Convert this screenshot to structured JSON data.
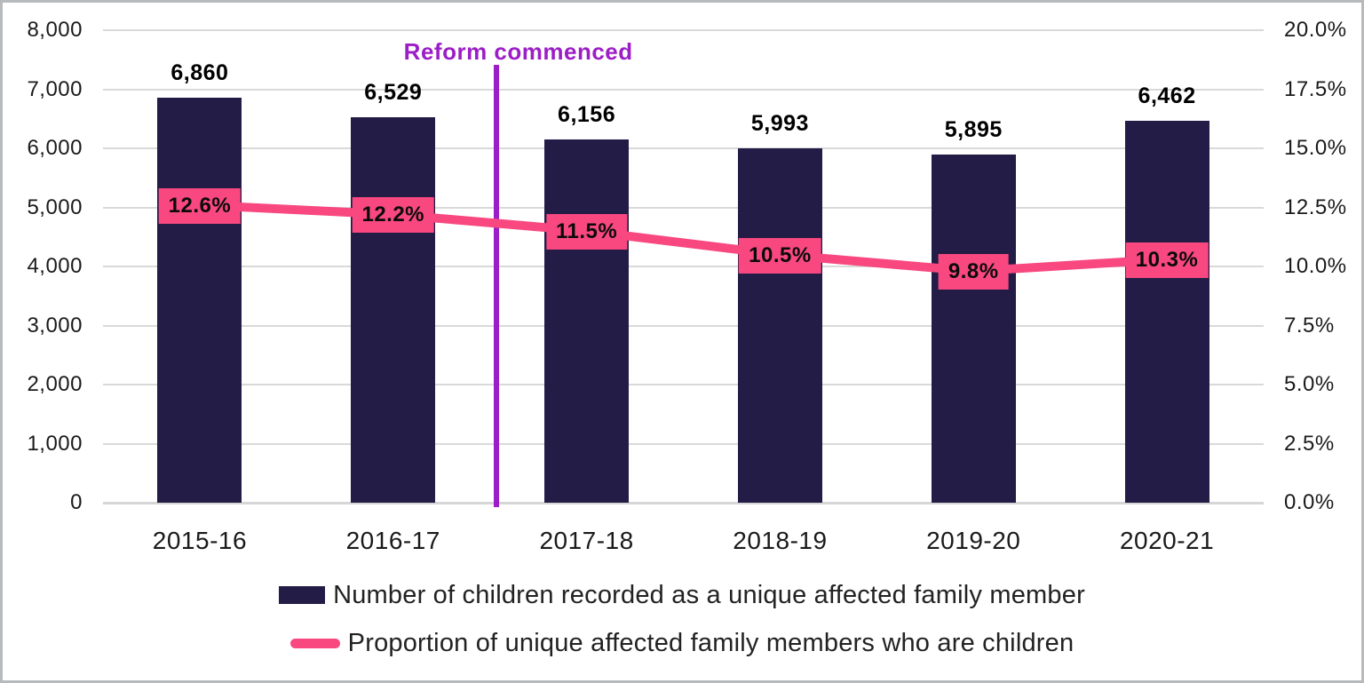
{
  "chart_data": {
    "type": "bar",
    "subtype": "bar-and-line-dual-axis",
    "categories": [
      "2015-16",
      "2016-17",
      "2017-18",
      "2018-19",
      "2019-20",
      "2020-21"
    ],
    "series": [
      {
        "name": "Number of children recorded as a unique affected family member",
        "type": "bar",
        "axis": "left",
        "color": "#231c46",
        "values": [
          6860,
          6529,
          6156,
          5993,
          5895,
          6462
        ],
        "labels": [
          "6,860",
          "6,529",
          "6,156",
          "5,993",
          "5,895",
          "6,462"
        ]
      },
      {
        "name": "Proportion of unique affected family members who are children",
        "type": "line",
        "axis": "right",
        "color": "#f8487f",
        "values": [
          12.6,
          12.2,
          11.5,
          10.5,
          9.8,
          10.3
        ],
        "labels": [
          "12.6%",
          "12.2%",
          "11.5%",
          "10.5%",
          "9.8%",
          "10.3%"
        ]
      }
    ],
    "left_axis": {
      "min": 0,
      "max": 8000,
      "step": 1000,
      "tick_labels": [
        "0",
        "1,000",
        "2,000",
        "3,000",
        "4,000",
        "5,000",
        "6,000",
        "7,000",
        "8,000"
      ]
    },
    "right_axis": {
      "min": 0,
      "max": 20,
      "step": 2.5,
      "tick_labels": [
        "0.0%",
        "2.5%",
        "5.0%",
        "7.5%",
        "10.0%",
        "12.5%",
        "15.0%",
        "17.5%",
        "20.0%"
      ]
    },
    "annotation": {
      "text": "Reform commenced",
      "color": "#9c1ec6",
      "between_categories": [
        "2016-17",
        "2017-18"
      ]
    },
    "grid": true,
    "gridline_color": "#d9d9d9",
    "legend_position": "bottom",
    "title": "",
    "xlabel": "",
    "ylabel": ""
  }
}
